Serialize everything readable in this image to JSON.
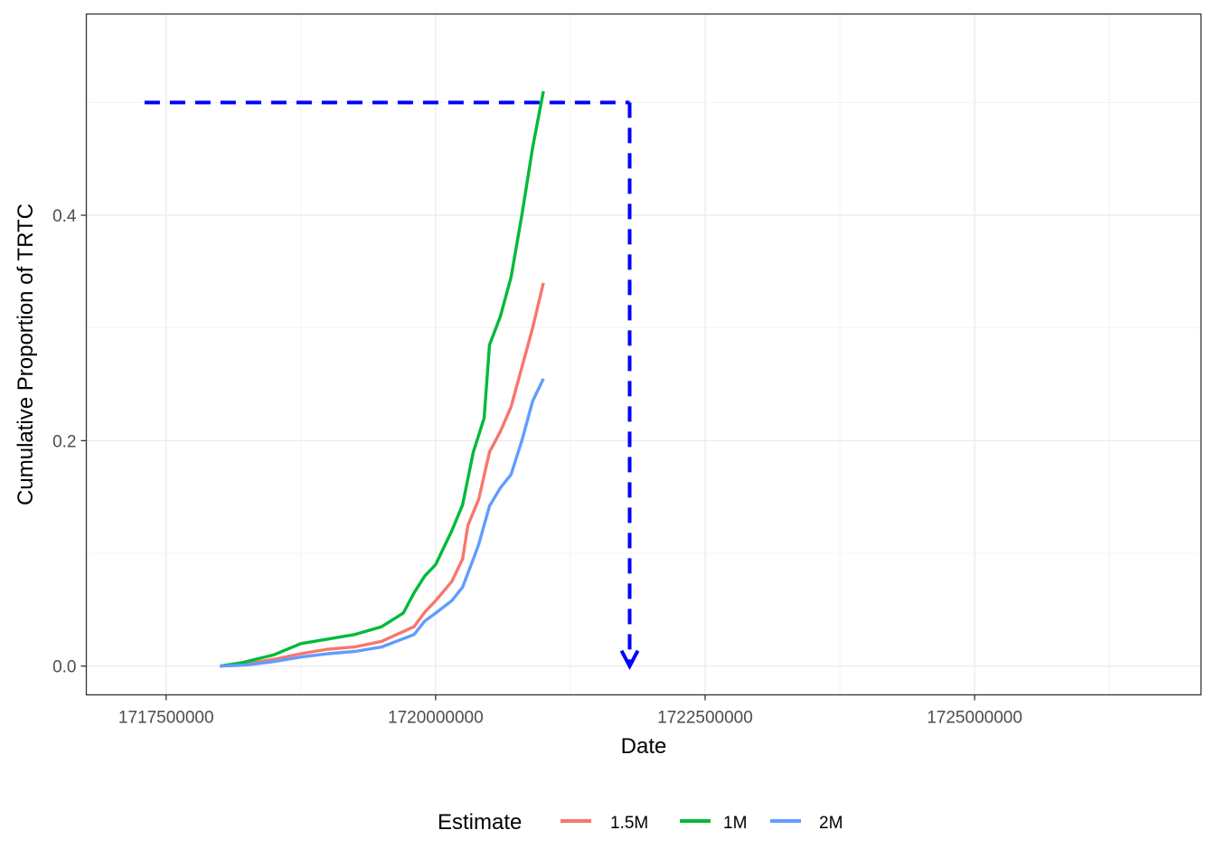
{
  "chart_data": {
    "type": "line",
    "xlabel": "Date",
    "ylabel": "Cumulative Proportion of TRTC",
    "xlim": [
      1716760000,
      1727100000
    ],
    "ylim": [
      -0.0255,
      0.5785
    ],
    "x_ticks": [
      1717500000,
      1720000000,
      1722500000,
      1725000000
    ],
    "x_tick_labels": [
      "1717500000",
      "1720000000",
      "1722500000",
      "1725000000"
    ],
    "y_ticks": [
      0.0,
      0.2,
      0.4
    ],
    "y_tick_labels": [
      "0.0",
      "0.2",
      "0.4"
    ],
    "grid": true,
    "legend": {
      "title": "Estimate",
      "position": "bottom"
    },
    "colors": {
      "1.5M": "#F8766D",
      "1M": "#00BA38",
      "2M": "#619CFF",
      "guide": "#0000FF"
    },
    "series": [
      {
        "name": "1.5M",
        "x": [
          1718000000,
          1718250000,
          1718500000,
          1718750000,
          1719000000,
          1719250000,
          1719500000,
          1719800000,
          1719900000,
          1720000000,
          1720150000,
          1720250000,
          1720300000,
          1720400000,
          1720500000,
          1720600000,
          1720700000,
          1720800000,
          1720900000,
          1721000000
        ],
        "y": [
          0.0,
          0.002,
          0.006,
          0.011,
          0.015,
          0.017,
          0.022,
          0.035,
          0.048,
          0.058,
          0.075,
          0.095,
          0.125,
          0.148,
          0.19,
          0.208,
          0.23,
          0.265,
          0.3,
          0.34
        ]
      },
      {
        "name": "1M",
        "x": [
          1718000000,
          1718200000,
          1718500000,
          1718750000,
          1719000000,
          1719250000,
          1719500000,
          1719700000,
          1719800000,
          1719900000,
          1720000000,
          1720150000,
          1720250000,
          1720350000,
          1720450000,
          1720500000,
          1720600000,
          1720700000,
          1720800000,
          1720900000,
          1721000000
        ],
        "y": [
          0.0,
          0.003,
          0.01,
          0.02,
          0.024,
          0.028,
          0.035,
          0.047,
          0.065,
          0.08,
          0.09,
          0.12,
          0.143,
          0.19,
          0.22,
          0.285,
          0.31,
          0.345,
          0.4,
          0.46,
          0.51
        ]
      },
      {
        "name": "2M",
        "x": [
          1718000000,
          1718250000,
          1718500000,
          1718750000,
          1719000000,
          1719250000,
          1719500000,
          1719800000,
          1719900000,
          1720000000,
          1720150000,
          1720250000,
          1720350000,
          1720400000,
          1720500000,
          1720600000,
          1720700000,
          1720800000,
          1720900000,
          1721000000
        ],
        "y": [
          0.0,
          0.001,
          0.004,
          0.008,
          0.011,
          0.013,
          0.017,
          0.028,
          0.04,
          0.047,
          0.058,
          0.07,
          0.095,
          0.108,
          0.142,
          0.158,
          0.17,
          0.2,
          0.235,
          0.255
        ]
      }
    ],
    "reference_lines": [
      {
        "from": [
          1717300000,
          0.5
        ],
        "to": [
          1721800000,
          0.5
        ],
        "style": "dashed"
      },
      {
        "from": [
          1721800000,
          0.5
        ],
        "to": [
          1721800000,
          0.0
        ],
        "style": "dashed",
        "arrow": true
      }
    ]
  }
}
